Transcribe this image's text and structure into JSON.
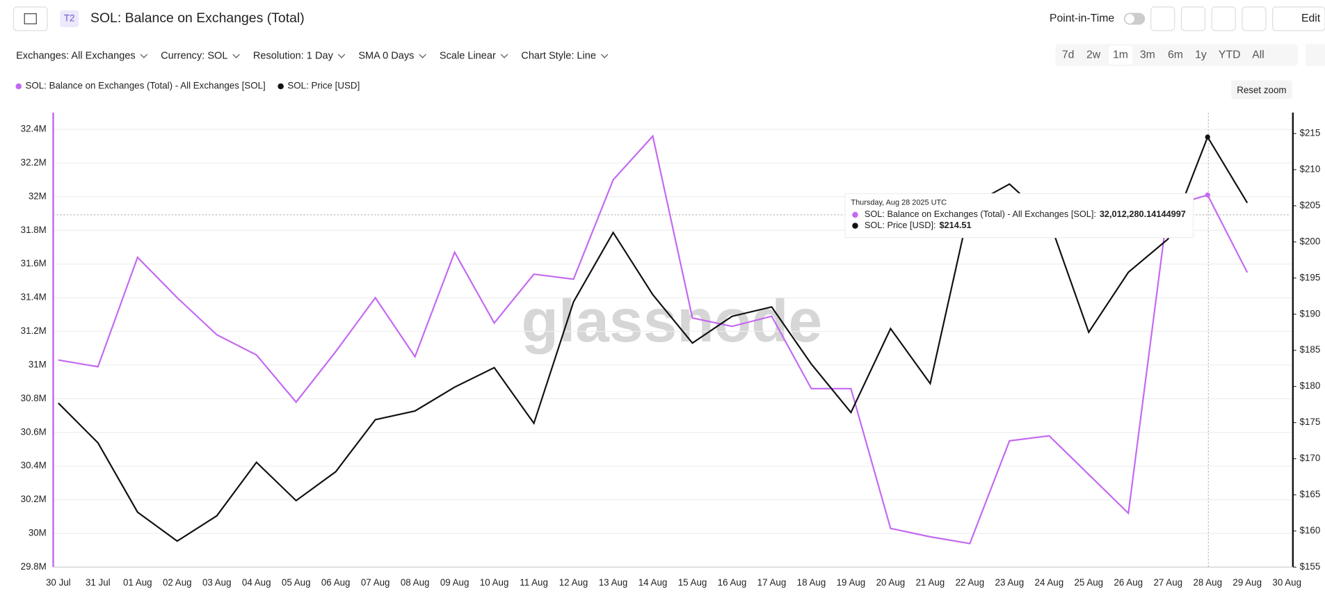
{
  "header": {
    "badge": "T2",
    "title": "SOL: Balance on Exchanges (Total)",
    "point_in_time": "Point-in-Time",
    "edit": "Edit"
  },
  "controls": {
    "dropdowns": [
      "Exchanges: All Exchanges",
      "Currency: SOL",
      "Resolution: 1 Day",
      "SMA 0 Days",
      "Scale Linear",
      "Chart Style: Line"
    ],
    "ranges": [
      "7d",
      "2w",
      "1m",
      "3m",
      "6m",
      "1y",
      "YTD",
      "All"
    ],
    "active_range": "1m",
    "reset_zoom": "Reset zoom"
  },
  "watermark": "glassnode",
  "tooltip": {
    "date": "Thursday, Aug 28 2025 UTC",
    "rows": [
      {
        "label": "SOL: Balance on Exchanges (Total) - All Exchanges [SOL]:",
        "value": "32,012,280.14144997"
      },
      {
        "label": "SOL: Price [USD]:",
        "value": "$214.51"
      }
    ]
  },
  "chart_data": {
    "type": "line",
    "grid": true,
    "categories": [
      "30 Jul",
      "31 Jul",
      "01 Aug",
      "02 Aug",
      "03 Aug",
      "04 Aug",
      "05 Aug",
      "06 Aug",
      "07 Aug",
      "08 Aug",
      "09 Aug",
      "10 Aug",
      "11 Aug",
      "12 Aug",
      "13 Aug",
      "14 Aug",
      "15 Aug",
      "16 Aug",
      "17 Aug",
      "18 Aug",
      "19 Aug",
      "20 Aug",
      "21 Aug",
      "22 Aug",
      "23 Aug",
      "24 Aug",
      "25 Aug",
      "26 Aug",
      "27 Aug",
      "28 Aug",
      "29 Aug",
      "30 Aug"
    ],
    "series": [
      {
        "name": "SOL: Balance on Exchanges (Total) - All Exchanges [SOL]",
        "color": "#c468f2",
        "axis": "y",
        "values": [
          31.03,
          30.99,
          31.64,
          31.4,
          31.18,
          31.06,
          30.78,
          31.08,
          31.4,
          31.05,
          31.67,
          31.25,
          31.54,
          31.51,
          32.1,
          32.36,
          31.28,
          31.23,
          31.29,
          30.86,
          30.86,
          30.03,
          29.98,
          29.94,
          30.55,
          30.58,
          30.35,
          30.12,
          31.94,
          32.01,
          31.55,
          null
        ]
      },
      {
        "name": "SOL: Price [USD]",
        "color": "#111111",
        "axis": "y2",
        "values": [
          177.7,
          172.2,
          162.6,
          158.6,
          162.1,
          169.5,
          164.2,
          168.2,
          175.4,
          176.6,
          179.9,
          182.6,
          174.9,
          191.7,
          201.3,
          192.7,
          186.0,
          189.7,
          191.0,
          183.1,
          176.4,
          188.0,
          180.4,
          205,
          208,
          203,
          187.5,
          195.8,
          200.4,
          214.51,
          205.4,
          null
        ]
      }
    ],
    "ylim": [
      29.8,
      32.5
    ],
    "yticks": [
      {
        "value": 29.8,
        "label": "29.8M"
      },
      {
        "value": 30,
        "label": "30M"
      },
      {
        "value": 30.2,
        "label": "30.2M"
      },
      {
        "value": 30.4,
        "label": "30.4M"
      },
      {
        "value": 30.6,
        "label": "30.6M"
      },
      {
        "value": 30.8,
        "label": "30.8M"
      },
      {
        "value": 31,
        "label": "31M"
      },
      {
        "value": 31.2,
        "label": "31.2M"
      },
      {
        "value": 31.4,
        "label": "31.4M"
      },
      {
        "value": 31.6,
        "label": "31.6M"
      },
      {
        "value": 31.8,
        "label": "31.8M"
      },
      {
        "value": 32,
        "label": "32M"
      },
      {
        "value": 32.2,
        "label": "32.2M"
      },
      {
        "value": 32.4,
        "label": "32.4M"
      }
    ],
    "y2lim": [
      155,
      217.9
    ],
    "y2ticks": [
      {
        "value": 155,
        "label": "$155"
      },
      {
        "value": 160,
        "label": "$160"
      },
      {
        "value": 165,
        "label": "$165"
      },
      {
        "value": 170,
        "label": "$170"
      },
      {
        "value": 175,
        "label": "$175"
      },
      {
        "value": 180,
        "label": "$180"
      },
      {
        "value": 185,
        "label": "$185"
      },
      {
        "value": 190,
        "label": "$190"
      },
      {
        "value": 195,
        "label": "$195"
      },
      {
        "value": 200,
        "label": "$200"
      },
      {
        "value": 205,
        "label": "$205"
      },
      {
        "value": 210,
        "label": "$210"
      },
      {
        "value": 215,
        "label": "$215"
      }
    ]
  }
}
